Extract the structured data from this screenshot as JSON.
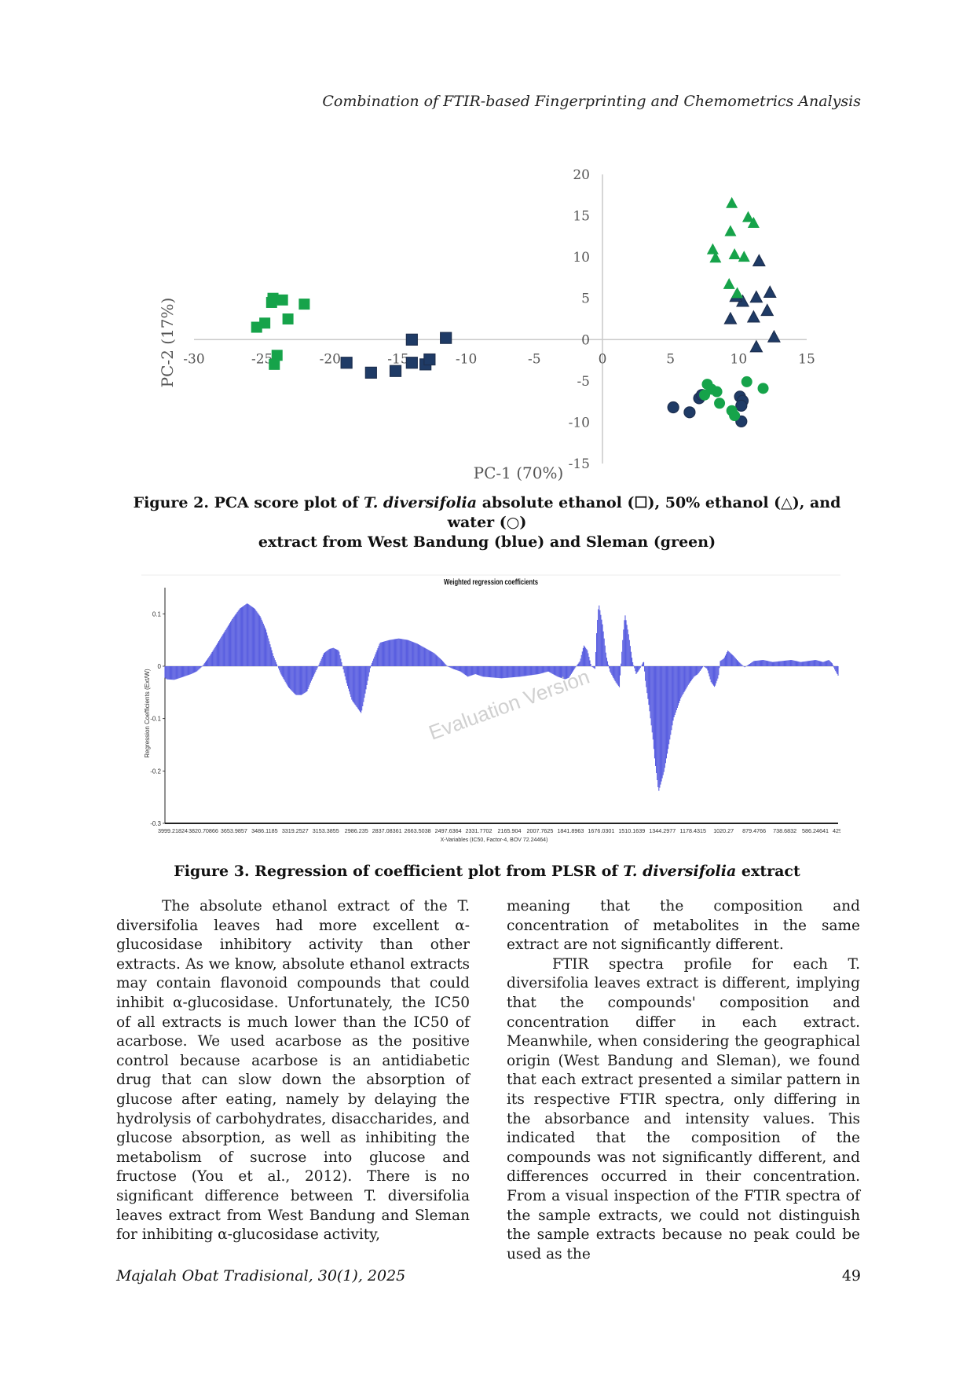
{
  "header": {
    "running_title": "Combination of FTIR-based Fingerprinting and Chemometrics Analysis"
  },
  "colors": {
    "west_bandung": "#1f3b66",
    "sleman": "#16a34a",
    "bar": "#5a5fe0"
  },
  "figure2": {
    "caption_l1_a": "Figure 2. PCA score plot of ",
    "caption_l1_b": "T. diversifolia",
    "caption_l1_c": " absolute ethanol (☐), 50% ethanol (△), and water (○)",
    "caption_l2": "extract from West Bandung (blue) and Sleman (green)",
    "chart_data": {
      "type": "scatter",
      "xlabel": "PC-1 (70%)",
      "ylabel": "PC-2 (17%)",
      "xlim": [
        -30,
        15
      ],
      "ylim": [
        -15,
        20
      ],
      "xticks": [
        "-30",
        "-25",
        "-20",
        "-15",
        "-10",
        "-5",
        "0",
        "5",
        "10",
        "15"
      ],
      "yticks": [
        "20",
        "15",
        "10",
        "5",
        "0",
        "-5",
        "-10",
        "-15"
      ],
      "series": [
        {
          "name": "Absolute ethanol - West Bandung",
          "marker": "square",
          "color": "#1f3b66",
          "points": [
            [
              -18.8,
              -2.8
            ],
            [
              -17,
              -4
            ],
            [
              -15.2,
              -3.8
            ],
            [
              -14,
              -2.8
            ],
            [
              -13,
              -3
            ],
            [
              -12.7,
              -2.4
            ],
            [
              -14,
              0
            ],
            [
              -11.5,
              0.2
            ]
          ]
        },
        {
          "name": "Absolute ethanol - Sleman",
          "marker": "square",
          "color": "#16a34a",
          "points": [
            [
              -24.2,
              5
            ],
            [
              -24.3,
              4.5
            ],
            [
              -23.5,
              4.8
            ],
            [
              -21.9,
              4.3
            ],
            [
              -23.1,
              2.5
            ],
            [
              -24.8,
              2
            ],
            [
              -25.4,
              1.5
            ],
            [
              -23.9,
              -1.9
            ],
            [
              -24.1,
              -3
            ]
          ]
        },
        {
          "name": "50% ethanol - West Bandung",
          "marker": "triangle",
          "color": "#1f3b66",
          "points": [
            [
              11.5,
              9.5
            ],
            [
              12.3,
              5.7
            ],
            [
              11.3,
              5.1
            ],
            [
              10.3,
              4.6
            ],
            [
              9.8,
              5.2
            ],
            [
              12.1,
              3.5
            ],
            [
              11.1,
              2.7
            ],
            [
              9.4,
              2.5
            ],
            [
              12.6,
              0.3
            ],
            [
              11.3,
              -0.9
            ]
          ]
        },
        {
          "name": "50% ethanol - Sleman",
          "marker": "triangle",
          "color": "#16a34a",
          "points": [
            [
              9.5,
              16.5
            ],
            [
              10.7,
              14.8
            ],
            [
              11.1,
              14.1
            ],
            [
              9.4,
              13.1
            ],
            [
              8.1,
              10.9
            ],
            [
              8.3,
              9.9
            ],
            [
              9.7,
              10.3
            ],
            [
              10.4,
              10
            ],
            [
              9.3,
              6.7
            ],
            [
              9.9,
              5.6
            ]
          ]
        },
        {
          "name": "Water - West Bandung",
          "marker": "circle",
          "color": "#1f3b66",
          "points": [
            [
              5.2,
              -8.2
            ],
            [
              6.4,
              -8.8
            ],
            [
              7.1,
              -7.1
            ],
            [
              7.3,
              -6.7
            ],
            [
              10.1,
              -6.9
            ],
            [
              10.3,
              -7.4
            ],
            [
              10.2,
              -8
            ],
            [
              10.2,
              -9.9
            ]
          ]
        },
        {
          "name": "Water - Sleman",
          "marker": "circle",
          "color": "#16a34a",
          "points": [
            [
              7.7,
              -5.4
            ],
            [
              8,
              -6
            ],
            [
              7.5,
              -6.7
            ],
            [
              8.4,
              -6.3
            ],
            [
              8.6,
              -7.7
            ],
            [
              9.5,
              -8.6
            ],
            [
              9.7,
              -9.2
            ],
            [
              10.6,
              -5.1
            ],
            [
              11.8,
              -5.9
            ]
          ]
        }
      ]
    }
  },
  "figure3": {
    "caption_a": "Figure 3. Regression of coefficient plot from PLSR of ",
    "caption_b": "T. diversifolia",
    "caption_c": " extract",
    "watermark": "Evaluation Version",
    "chart_data": {
      "type": "bar",
      "title": "Weighted regression coefficients",
      "ylabel": "Regression Coefficients (Ext/W)",
      "xlabel": "X-Variables (IC50, Factor-4, BOV 72.24464)",
      "ylim": [
        -0.3,
        0.15
      ],
      "yticks": [
        "0.1",
        "0",
        "-0.1",
        "-0.2",
        "-0.3"
      ],
      "xticks": [
        "3999.21824",
        "3820.70866",
        "3653.9857",
        "3486.1185",
        "3319.2527",
        "3153.3855",
        "2986.235",
        "2837.08361",
        "2663.5038",
        "2497.6364",
        "2331.7702",
        "2165.904",
        "2007.7625",
        "1841.8963",
        "1676.0301",
        "1510.1639",
        "1344.2977",
        "1178.4315",
        "1020.27",
        "879.4766",
        "738.6832",
        "586.24641",
        "429.15624"
      ],
      "profile_wavenumber": [
        4000,
        3990,
        3950,
        3900,
        3860,
        3830,
        3800,
        3760,
        3700,
        3640,
        3600,
        3560,
        3520,
        3490,
        3460,
        3420,
        3380,
        3340,
        3300,
        3270,
        3240,
        3220,
        3200,
        3180,
        3150,
        3120,
        3100,
        3070,
        3050,
        3030,
        3000,
        2950,
        2900,
        2850,
        2800,
        2750,
        2700,
        2650,
        2600,
        2560,
        2520,
        2490,
        2460,
        2420,
        2380,
        2340,
        2300,
        2200,
        2100,
        2000,
        1950,
        1900,
        1860,
        1840,
        1800,
        1780,
        1760,
        1740,
        1720,
        1700,
        1690,
        1680,
        1660,
        1640,
        1620,
        1605,
        1590,
        1570,
        1560,
        1550,
        1540,
        1520,
        1500,
        1480,
        1460,
        1440,
        1430,
        1410,
        1390,
        1380,
        1360,
        1330,
        1300,
        1280,
        1260,
        1240,
        1200,
        1170,
        1150,
        1120,
        1100,
        1080,
        1060,
        1040,
        1030,
        1010,
        990,
        960,
        930,
        900,
        850,
        800,
        750,
        700,
        650,
        600,
        560,
        520,
        480,
        450,
        430,
        420,
        400
      ],
      "profile_coefficient": [
        -0.022,
        -0.025,
        -0.026,
        -0.02,
        -0.015,
        -0.01,
        0.0,
        0.02,
        0.055,
        0.09,
        0.11,
        0.12,
        0.11,
        0.095,
        0.07,
        0.02,
        -0.015,
        -0.04,
        -0.055,
        -0.055,
        -0.048,
        -0.03,
        -0.015,
        0.0,
        0.025,
        0.033,
        0.035,
        0.03,
        0.0,
        -0.03,
        -0.065,
        -0.09,
        0.0,
        0.045,
        0.05,
        0.053,
        0.05,
        0.043,
        0.033,
        0.025,
        0.012,
        0.0,
        -0.005,
        -0.01,
        -0.02,
        -0.015,
        -0.02,
        -0.023,
        -0.02,
        -0.015,
        -0.01,
        -0.02,
        -0.025,
        -0.022,
        0.0,
        0.01,
        0.04,
        0.03,
        0.0,
        -0.005,
        0.075,
        0.12,
        0.08,
        0.02,
        -0.01,
        -0.02,
        -0.03,
        -0.04,
        0.01,
        0.06,
        0.1,
        0.06,
        0.01,
        -0.015,
        -0.005,
        0.01,
        -0.03,
        -0.08,
        -0.14,
        -0.18,
        -0.24,
        -0.2,
        -0.14,
        -0.1,
        -0.08,
        -0.06,
        -0.035,
        -0.02,
        -0.015,
        0.0,
        -0.005,
        -0.03,
        -0.04,
        -0.02,
        0.01,
        0.015,
        0.03,
        0.02,
        0.008,
        -0.002,
        0.01,
        0.012,
        0.008,
        0.01,
        0.012,
        0.008,
        0.01,
        0.012,
        0.008,
        0.012,
        0.005,
        -0.005,
        -0.018
      ]
    }
  },
  "body": {
    "left_p1": "The absolute ethanol extract of the T. diversifolia leaves had more excellent α-glucosidase inhibitory activity than other extracts. As we know, absolute ethanol extracts may contain flavonoid compounds that could inhibit α-glucosidase. Unfortunately, the IC50 of all extracts is much lower than the IC50 of acarbose. We used acarbose as the positive control because acarbose is an antidiabetic drug that can slow down the absorption of glucose after eating, namely by delaying the hydrolysis of carbohydrates, disaccharides, and glucose absorption, as well as inhibiting the metabolism of sucrose into glucose and fructose (You et al., 2012). There is no significant difference between T. diversifolia leaves extract from West Bandung and Sleman for inhibiting α-glucosidase activity,",
    "right_p1": "meaning that the composition and concentration of metabolites in the same extract are not significantly different.",
    "right_p2": "FTIR spectra profile for each T. diversifolia leaves extract is different, implying that the compounds' composition and concentration differ in each extract. Meanwhile, when considering the geographical origin (West Bandung and Sleman), we found that each extract presented a similar pattern in its respective FTIR spectra, only differing in the absorbance and intensity values. This indicated that the composition of the compounds was not significantly different, and differences occurred in their concentration. From a visual inspection of the FTIR spectra of the sample extracts, we could not distinguish the sample extracts because no peak could be used as the"
  },
  "footer": {
    "journal": "Majalah Obat Tradisional, 30(1), 2025",
    "page_number": "49"
  }
}
